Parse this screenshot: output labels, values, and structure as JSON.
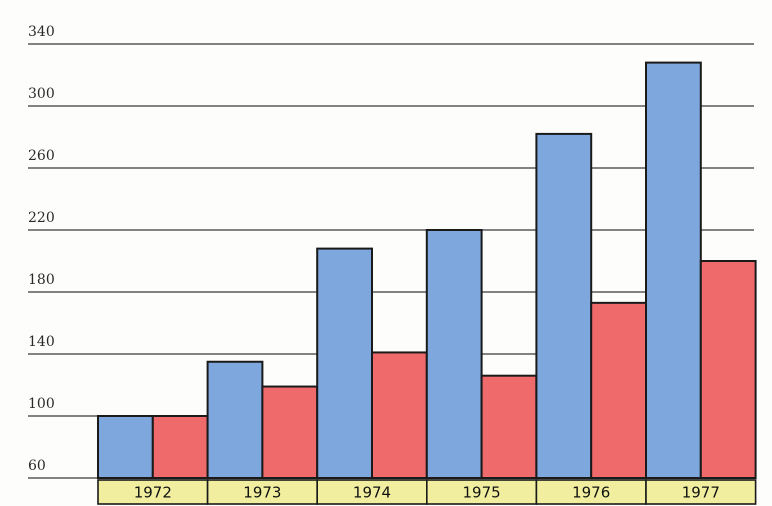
{
  "chart_data": {
    "type": "bar",
    "categories": [
      "1972",
      "1973",
      "1974",
      "1975",
      "1976",
      "1977"
    ],
    "series": [
      {
        "color": "#7da7dd",
        "values": [
          100,
          135,
          208,
          220,
          282,
          328
        ]
      },
      {
        "color": "#ef6a6a",
        "values": [
          100,
          119,
          141,
          126,
          173,
          200
        ]
      }
    ],
    "yticks": [
      60,
      100,
      140,
      180,
      220,
      260,
      300,
      340
    ],
    "ylim": [
      60,
      340
    ],
    "grid": true,
    "category_label_bg": "#f1ef9f"
  }
}
